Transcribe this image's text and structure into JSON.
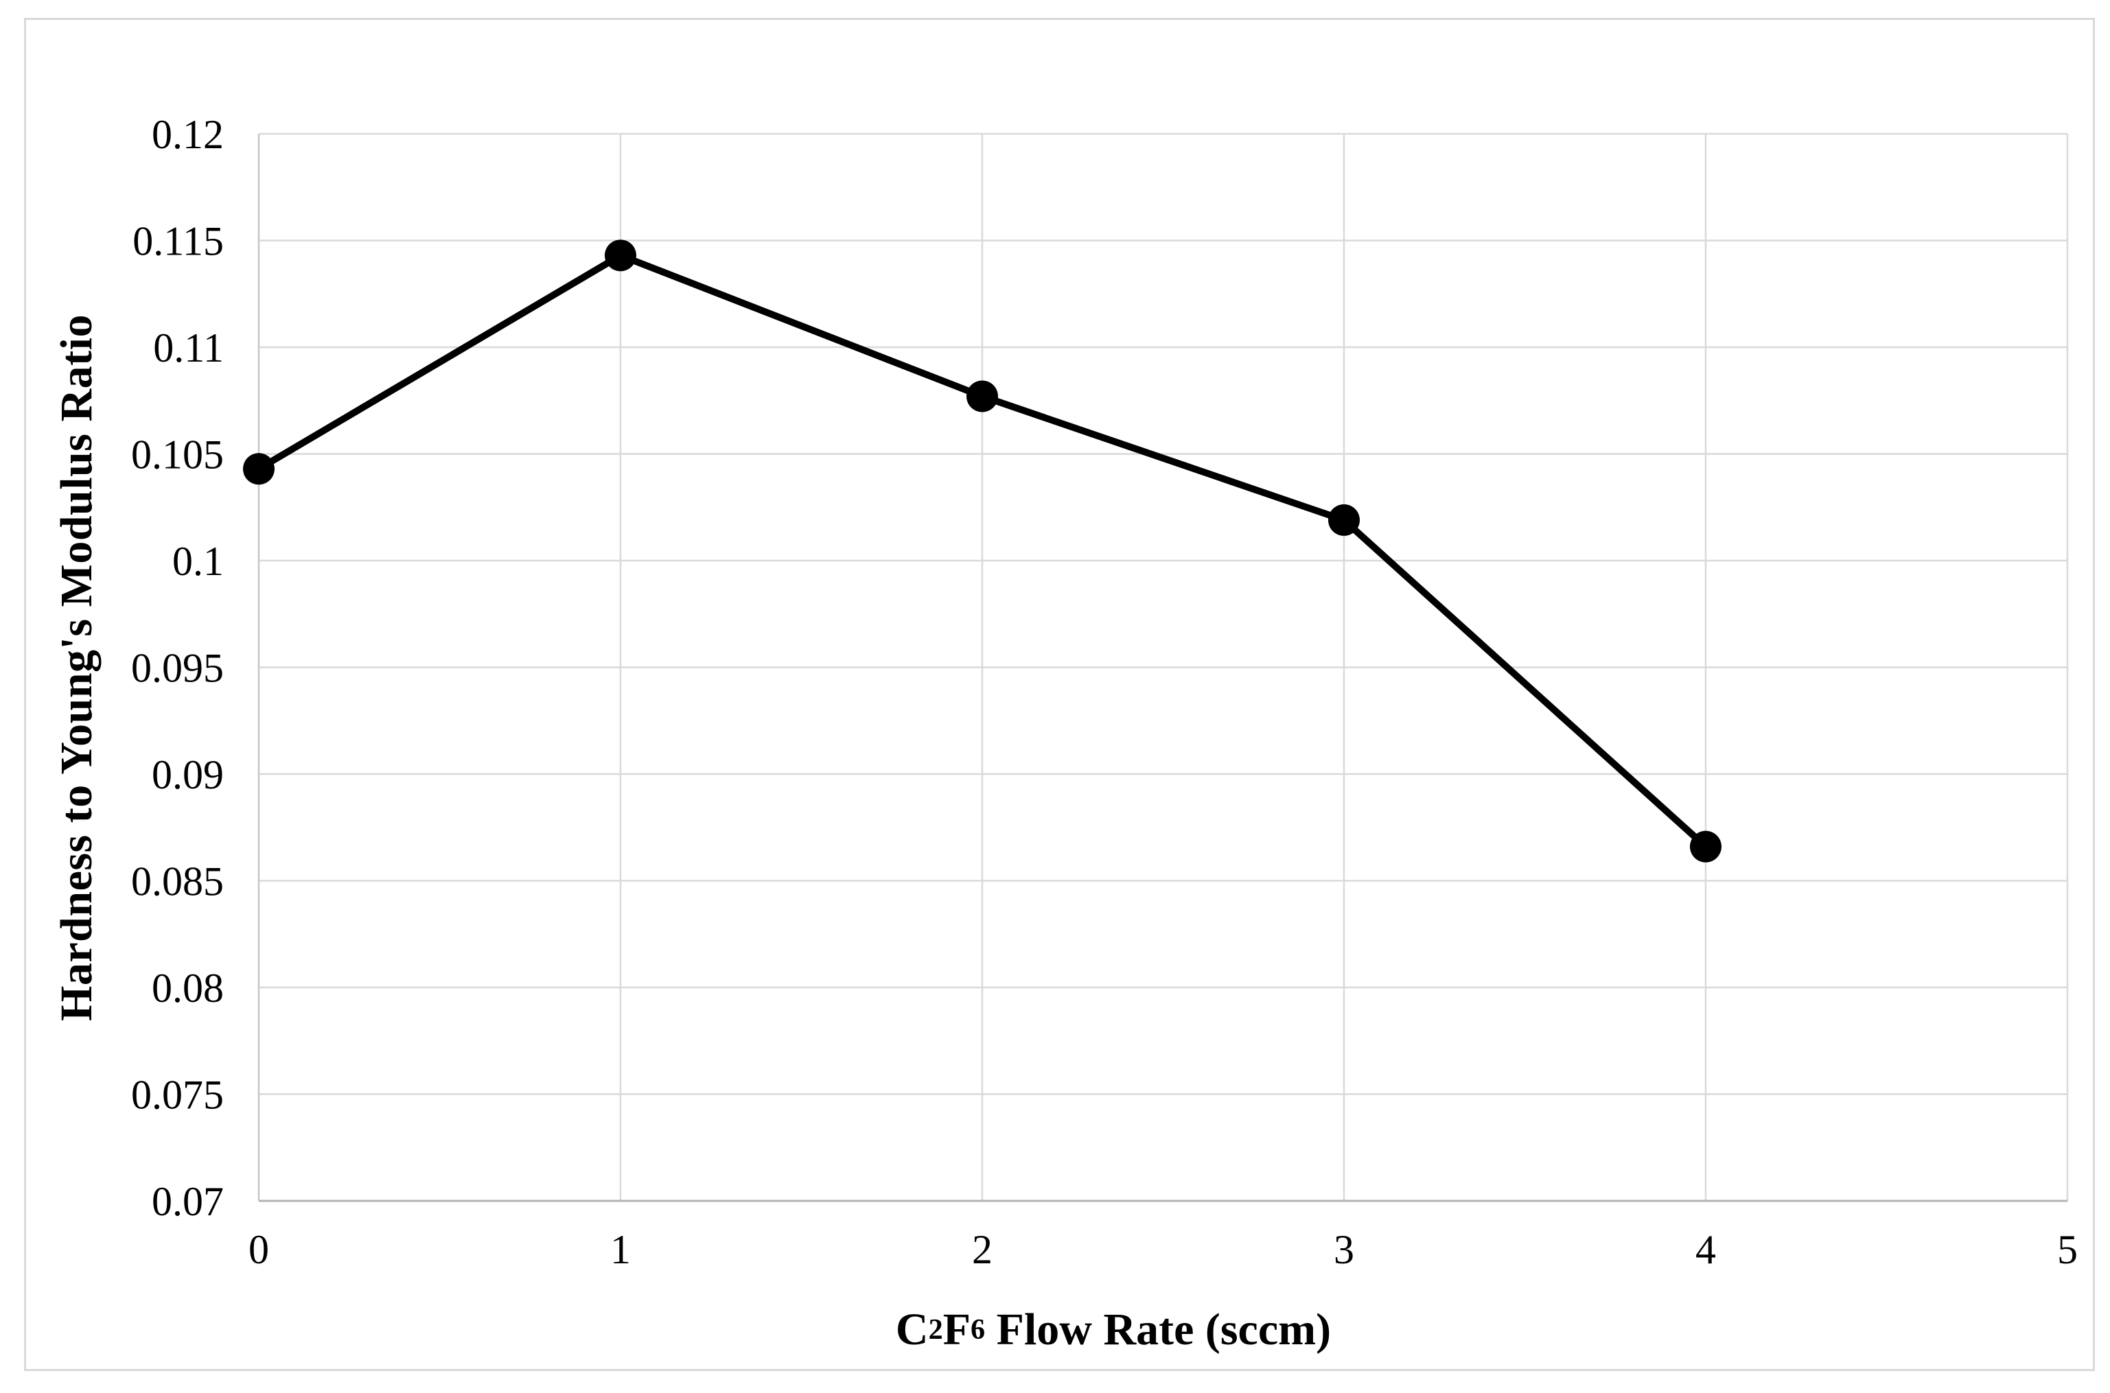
{
  "figure": {
    "background_color": "#ffffff",
    "border_color": "#d9d9d9"
  },
  "chart_data": {
    "type": "line",
    "title": "",
    "xlabel": "C2F6 Flow Rate (sccm)",
    "xlabel_parts": {
      "c1": "C",
      "sub1": "2",
      "c2": "F",
      "sub2": "6",
      "rest": " Flow Rate (sccm)"
    },
    "ylabel": "Hardness to Young's Modulus Ratio",
    "x": [
      0,
      1,
      2,
      3,
      4
    ],
    "y": [
      0.1043,
      0.1143,
      0.1077,
      0.1019,
      0.0866
    ],
    "xlim": [
      0,
      5
    ],
    "ylim": [
      0.07,
      0.12
    ],
    "x_ticks": [
      0,
      1,
      2,
      3,
      4,
      5
    ],
    "x_tick_labels": [
      "0",
      "1",
      "2",
      "3",
      "4",
      "5"
    ],
    "y_ticks": [
      0.07,
      0.075,
      0.08,
      0.085,
      0.09,
      0.095,
      0.1,
      0.105,
      0.11,
      0.115,
      0.12
    ],
    "y_tick_labels": [
      "0.07",
      "0.075",
      "0.08",
      "0.085",
      "0.09",
      "0.095",
      "0.1",
      "0.105",
      "0.11",
      "0.115",
      "0.12"
    ],
    "grid": true,
    "legend_position": "none",
    "line_color": "#000000",
    "marker": "circle",
    "marker_color": "#000000",
    "gridline_color": "#d9d9d9",
    "y_axis_line_color": "#c6c6c6",
    "x_axis_line_color": "#b3b3b3"
  }
}
